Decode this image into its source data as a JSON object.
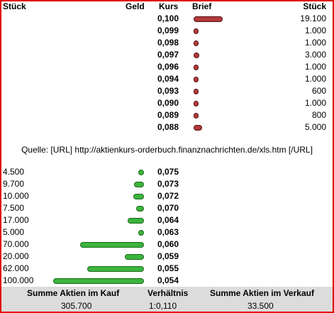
{
  "header": {
    "stueck_left": "Stück",
    "geld": "Geld",
    "kurs": "Kurs",
    "brief": "Brief",
    "stueck_right": "Stück"
  },
  "sell_rows": [
    {
      "kurs": "0,100",
      "stueck": "19.100",
      "amount": 19100
    },
    {
      "kurs": "0,099",
      "stueck": "1.000",
      "amount": 1000
    },
    {
      "kurs": "0,098",
      "stueck": "1.000",
      "amount": 1000
    },
    {
      "kurs": "0,097",
      "stueck": "3.000",
      "amount": 3000
    },
    {
      "kurs": "0,096",
      "stueck": "1.000",
      "amount": 1000
    },
    {
      "kurs": "0,094",
      "stueck": "1.000",
      "amount": 1000
    },
    {
      "kurs": "0,093",
      "stueck": "600",
      "amount": 600
    },
    {
      "kurs": "0,090",
      "stueck": "1.000",
      "amount": 1000
    },
    {
      "kurs": "0,089",
      "stueck": "800",
      "amount": 800
    },
    {
      "kurs": "0,088",
      "stueck": "5.000",
      "amount": 5000
    }
  ],
  "source_text": "Quelle: [URL] http://aktienkurs-orderbuch.finanznachrichten.de/xls.htm [/URL]",
  "buy_rows": [
    {
      "stueck": "4.500",
      "kurs": "0,075",
      "amount": 4500
    },
    {
      "stueck": "9.700",
      "kurs": "0,073",
      "amount": 9700
    },
    {
      "stueck": "10.000",
      "kurs": "0,072",
      "amount": 10000
    },
    {
      "stueck": "7.500",
      "kurs": "0,070",
      "amount": 7500
    },
    {
      "stueck": "17.000",
      "kurs": "0,064",
      "amount": 17000
    },
    {
      "stueck": "5.000",
      "kurs": "0,063",
      "amount": 5000
    },
    {
      "stueck": "70.000",
      "kurs": "0,060",
      "amount": 70000
    },
    {
      "stueck": "20.000",
      "kurs": "0,059",
      "amount": 20000
    },
    {
      "stueck": "62.000",
      "kurs": "0,055",
      "amount": 62000
    },
    {
      "stueck": "100.000",
      "kurs": "0,054",
      "amount": 100000
    }
  ],
  "footer": {
    "buy_label": "Summe Aktien im Kauf",
    "buy_value": "305.700",
    "ratio_label": "Verhältnis",
    "ratio_value": "1:0,110",
    "sell_label": "Summe Aktien im Verkauf",
    "sell_value": "33.500"
  },
  "colors": {
    "frame": "#e00000",
    "sell_oval": "#b13a3a",
    "buy_bar": "#3cb43c",
    "footer_bg": "#dcdcdc"
  }
}
